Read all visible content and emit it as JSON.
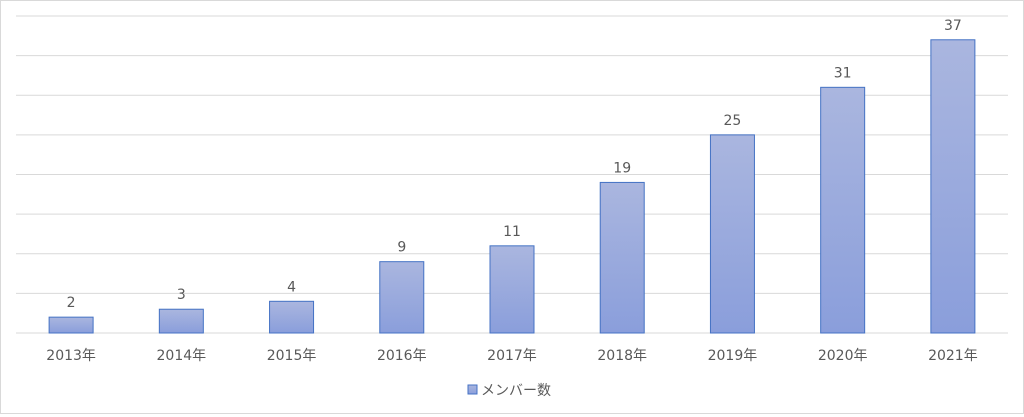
{
  "chart_data": {
    "type": "bar",
    "categories": [
      "2013年",
      "2014年",
      "2015年",
      "2016年",
      "2017年",
      "2018年",
      "2019年",
      "2020年",
      "2021年"
    ],
    "series": [
      {
        "name": "メンバー数",
        "values": [
          2,
          3,
          4,
          9,
          11,
          19,
          25,
          31,
          37
        ]
      }
    ],
    "ylim": [
      0,
      40
    ],
    "grid": true,
    "legend_position": "bottom",
    "data_labels": true,
    "colors": {
      "bar_top": "#aab6df",
      "bar_bottom": "#8a9edb",
      "bar_border": "#4472c4",
      "grid": "#d9d9d9"
    }
  }
}
